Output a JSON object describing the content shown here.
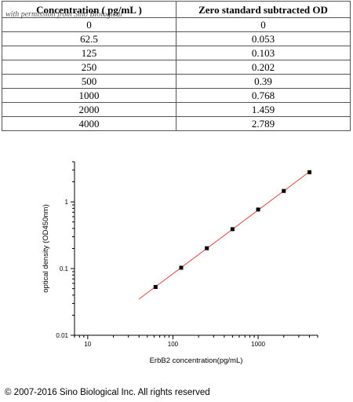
{
  "table": {
    "headers": [
      "Concentration ( pg/mL )",
      "Zero standard subtracted OD"
    ],
    "watermark": "with permission from Sino Biological",
    "rows": [
      [
        "0",
        "0"
      ],
      [
        "62.5",
        "0.053"
      ],
      [
        "125",
        "0.103"
      ],
      [
        "250",
        "0.202"
      ],
      [
        "500",
        "0.39"
      ],
      [
        "1000",
        "0.768"
      ],
      [
        "2000",
        "1.459"
      ],
      [
        "4000",
        "2.789"
      ]
    ]
  },
  "chart_data": {
    "type": "scatter",
    "xscale": "log",
    "yscale": "log",
    "xlim": [
      7,
      5000
    ],
    "ylim": [
      0.01,
      4
    ],
    "xticks": [
      10,
      100,
      1000
    ],
    "xtick_labels": [
      "10",
      "100",
      "1000"
    ],
    "yticks": [
      0.01,
      0.1,
      1
    ],
    "ytick_labels": [
      "0.01",
      "0.1",
      "1"
    ],
    "xlabel": "ErbB2 concentration(pg/mL)",
    "ylabel": "optical density (OD450nm)",
    "grid": false,
    "legend": "none",
    "series": [
      {
        "x": [
          62.5,
          125,
          250,
          500,
          1000,
          2000,
          4000
        ],
        "y": [
          0.053,
          0.103,
          0.202,
          0.39,
          0.768,
          1.459,
          2.789
        ],
        "marker": "square",
        "color": "#000000"
      }
    ],
    "fit_line": {
      "x": [
        40,
        4000
      ],
      "color": "#e8423a"
    }
  },
  "footer": {
    "copyright": "© 2007-2016 Sino Biological Inc. All rights reserved"
  }
}
